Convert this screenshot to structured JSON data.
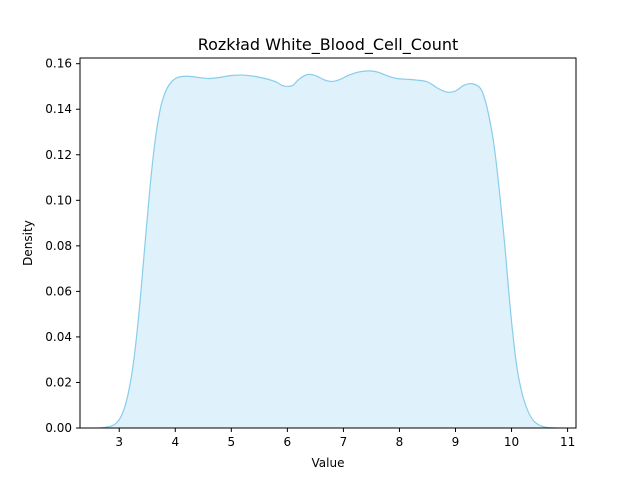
{
  "chart_data": {
    "type": "area",
    "title": "Rozkład White_Blood_Cell_Count",
    "xlabel": "Value",
    "ylabel": "Density",
    "xlim": [
      2.3,
      11.15
    ],
    "ylim": [
      0,
      0.1625
    ],
    "x_ticks": [
      3,
      4,
      5,
      6,
      7,
      8,
      9,
      10,
      11
    ],
    "x_tick_labels": [
      "3",
      "4",
      "5",
      "6",
      "7",
      "8",
      "9",
      "10",
      "11"
    ],
    "y_ticks": [
      0,
      0.02,
      0.04,
      0.06,
      0.08,
      0.1,
      0.12,
      0.14,
      0.16
    ],
    "y_tick_labels": [
      "0.00",
      "0.02",
      "0.04",
      "0.06",
      "0.08",
      "0.10",
      "0.12",
      "0.14",
      "0.16"
    ],
    "grid": false,
    "series": [
      {
        "line_color": "#87ceeb",
        "fill_color": "#dff1fa",
        "x": [
          2.65,
          2.75,
          2.85,
          2.95,
          3.05,
          3.15,
          3.25,
          3.35,
          3.45,
          3.55,
          3.65,
          3.75,
          3.85,
          3.95,
          4.05,
          4.2,
          4.4,
          4.6,
          4.8,
          5.0,
          5.2,
          5.4,
          5.6,
          5.8,
          5.9,
          6.0,
          6.1,
          6.2,
          6.35,
          6.5,
          6.65,
          6.8,
          6.95,
          7.1,
          7.3,
          7.5,
          7.65,
          7.8,
          7.95,
          8.1,
          8.3,
          8.5,
          8.7,
          8.85,
          9.0,
          9.15,
          9.3,
          9.45,
          9.55,
          9.65,
          9.72,
          9.8,
          9.88,
          9.95,
          10.02,
          10.1,
          10.2,
          10.3,
          10.4,
          10.5,
          10.6,
          10.7,
          10.8
        ],
        "y": [
          0.0,
          0.0003,
          0.0008,
          0.0022,
          0.006,
          0.014,
          0.028,
          0.05,
          0.078,
          0.106,
          0.128,
          0.142,
          0.149,
          0.1525,
          0.154,
          0.1545,
          0.154,
          0.1535,
          0.154,
          0.1548,
          0.155,
          0.1545,
          0.1535,
          0.152,
          0.1505,
          0.15,
          0.1505,
          0.153,
          0.1552,
          0.1548,
          0.153,
          0.1522,
          0.1532,
          0.155,
          0.1565,
          0.1568,
          0.156,
          0.1545,
          0.1535,
          0.1532,
          0.1528,
          0.152,
          0.149,
          0.1475,
          0.148,
          0.1505,
          0.1512,
          0.149,
          0.142,
          0.13,
          0.118,
          0.1,
          0.08,
          0.06,
          0.042,
          0.026,
          0.014,
          0.007,
          0.003,
          0.0012,
          0.0004,
          0.0001,
          0.0
        ]
      }
    ]
  }
}
